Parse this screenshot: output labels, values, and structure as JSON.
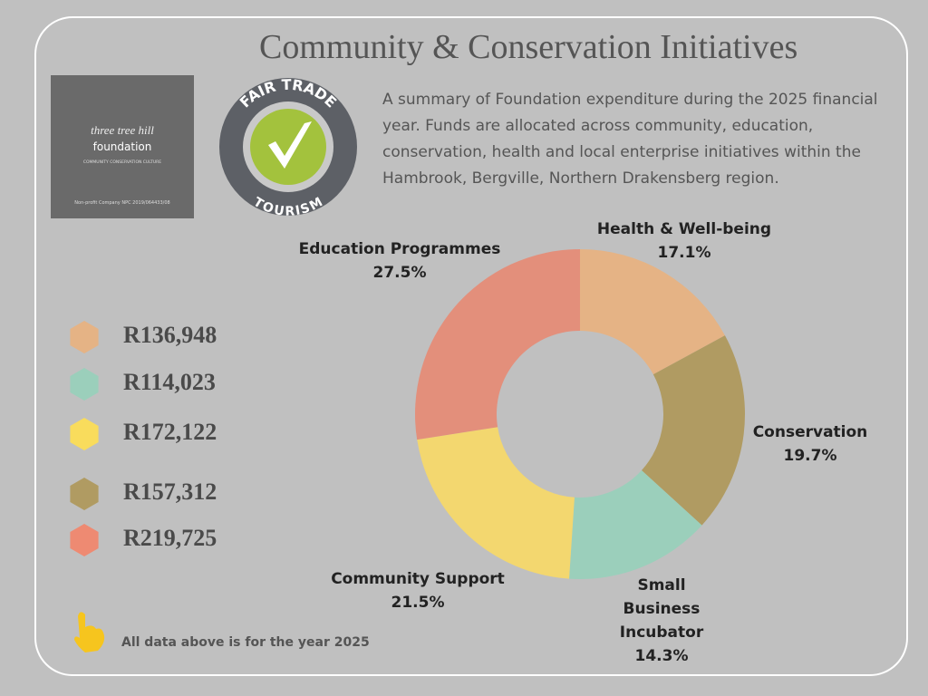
{
  "chart_data": {
    "type": "donut",
    "title": "Community & Conservation Initiatives",
    "subtitle": "A summary of Foundation expenditure during the 2025 financial year. Funds are allocated across community, education, conservation, health and local enterprise initiatives within the Hambrook, Bergville, Northern Drakensberg region.",
    "categories": [
      "Health & Well-being",
      "Conservation",
      "Small Business Incubator",
      "Community Support",
      "Education Programmes"
    ],
    "values": [
      17.1,
      19.7,
      14.3,
      21.5,
      27.5
    ],
    "value_labels": [
      "17.1%",
      "19.7%",
      "14.3%",
      "21.5%",
      "27.5%"
    ],
    "colors": [
      "#e5b385",
      "#b09b62",
      "#9bcfbb",
      "#f3d76f",
      "#e38f7b"
    ],
    "amounts": [
      136948,
      114023,
      172122,
      157312,
      219725
    ],
    "amount_labels": [
      "R136,948",
      "R114,023",
      "R172,122",
      "R157,312",
      "R219,725"
    ],
    "amount_colors": [
      "#e5b385",
      "#9bcfbb",
      "#f9dc5c",
      "#b09b62",
      "#ee8a72"
    ],
    "note": "All data above is for the year 2025"
  },
  "logos": {
    "foundation": {
      "script": "three tree hill",
      "name": "foundation",
      "motto": "COMMUNITY CONSERVATION CULTURE",
      "registration": "Non-profit Company NPC 2019/064433/08"
    },
    "fair_trade": {
      "top": "FAIR TRADE",
      "bottom": "TOURISM"
    }
  }
}
